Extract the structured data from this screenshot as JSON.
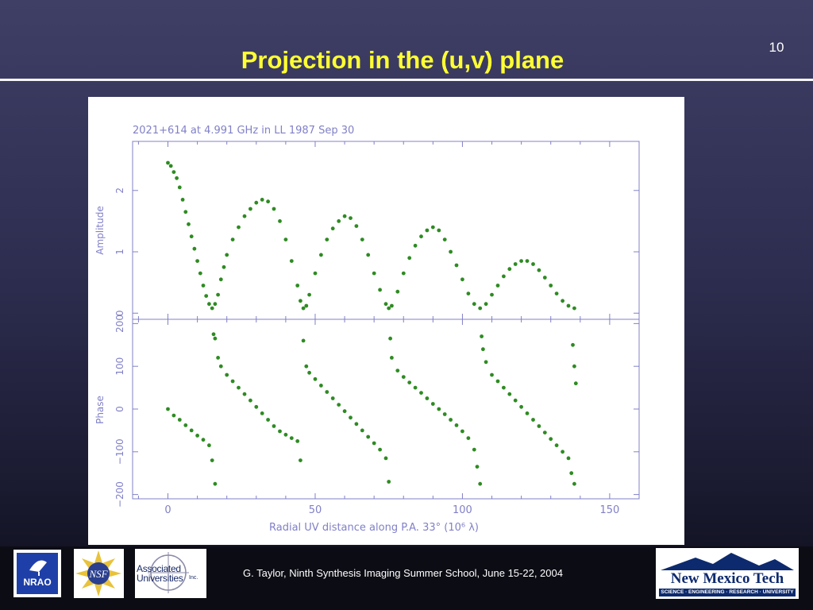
{
  "slide": {
    "number": "10",
    "title": "Projection in the (u,v) plane",
    "footer": "G. Taylor, Ninth Synthesis Imaging Summer School, June 15-22, 2004"
  },
  "logos": {
    "nrao": "NRAO",
    "nsf": "NSF",
    "au_line1": "Associated",
    "au_line2": "Universities",
    "au_line3": "Inc.",
    "nmt_name": "New Mexico Tech",
    "nmt_tagline": "SCIENCE · ENGINEERING · RESEARCH · UNIVERSITY"
  },
  "colors": {
    "data": "#2e8b22",
    "axes": "#8080c8",
    "title": "#ffff33"
  },
  "chart_data": {
    "type": "scatter",
    "title": "2021+614 at 4.991 GHz in LL  1987 Sep 30",
    "xlabel": "Radial UV distance along P.A. 33°  (10⁶ λ)",
    "xlim": [
      -12,
      160
    ],
    "x_ticks": [
      0,
      50,
      100,
      150
    ],
    "panels": [
      {
        "name": "amplitude",
        "ylabel": "Amplitude",
        "ylim": [
          -0.1,
          2.8
        ],
        "y_ticks": [
          0,
          1,
          2
        ],
        "points": [
          [
            0,
            2.45
          ],
          [
            1,
            2.4
          ],
          [
            2,
            2.3
          ],
          [
            3,
            2.2
          ],
          [
            4,
            2.05
          ],
          [
            5,
            1.85
          ],
          [
            6,
            1.65
          ],
          [
            7,
            1.45
          ],
          [
            8,
            1.25
          ],
          [
            9,
            1.05
          ],
          [
            10,
            0.85
          ],
          [
            11,
            0.65
          ],
          [
            12,
            0.45
          ],
          [
            13,
            0.28
          ],
          [
            14,
            0.15
          ],
          [
            15,
            0.08
          ],
          [
            16,
            0.15
          ],
          [
            17,
            0.3
          ],
          [
            18,
            0.55
          ],
          [
            19,
            0.75
          ],
          [
            20,
            0.95
          ],
          [
            22,
            1.2
          ],
          [
            24,
            1.4
          ],
          [
            26,
            1.58
          ],
          [
            28,
            1.7
          ],
          [
            30,
            1.8
          ],
          [
            32,
            1.85
          ],
          [
            34,
            1.82
          ],
          [
            36,
            1.7
          ],
          [
            38,
            1.5
          ],
          [
            40,
            1.2
          ],
          [
            42,
            0.85
          ],
          [
            44,
            0.45
          ],
          [
            45,
            0.2
          ],
          [
            46,
            0.08
          ],
          [
            47,
            0.12
          ],
          [
            48,
            0.3
          ],
          [
            50,
            0.65
          ],
          [
            52,
            0.95
          ],
          [
            54,
            1.2
          ],
          [
            56,
            1.38
          ],
          [
            58,
            1.5
          ],
          [
            60,
            1.58
          ],
          [
            62,
            1.55
          ],
          [
            64,
            1.42
          ],
          [
            66,
            1.2
          ],
          [
            68,
            0.95
          ],
          [
            70,
            0.65
          ],
          [
            72,
            0.38
          ],
          [
            74,
            0.15
          ],
          [
            75,
            0.08
          ],
          [
            76,
            0.12
          ],
          [
            78,
            0.35
          ],
          [
            80,
            0.65
          ],
          [
            82,
            0.9
          ],
          [
            84,
            1.1
          ],
          [
            86,
            1.25
          ],
          [
            88,
            1.35
          ],
          [
            90,
            1.4
          ],
          [
            92,
            1.35
          ],
          [
            94,
            1.2
          ],
          [
            96,
            1.0
          ],
          [
            98,
            0.78
          ],
          [
            100,
            0.55
          ],
          [
            102,
            0.32
          ],
          [
            104,
            0.15
          ],
          [
            106,
            0.08
          ],
          [
            108,
            0.15
          ],
          [
            110,
            0.3
          ],
          [
            112,
            0.45
          ],
          [
            114,
            0.6
          ],
          [
            116,
            0.72
          ],
          [
            118,
            0.8
          ],
          [
            120,
            0.85
          ],
          [
            122,
            0.85
          ],
          [
            124,
            0.8
          ],
          [
            126,
            0.7
          ],
          [
            128,
            0.58
          ],
          [
            130,
            0.45
          ],
          [
            132,
            0.32
          ],
          [
            134,
            0.2
          ],
          [
            136,
            0.12
          ],
          [
            138,
            0.08
          ]
        ]
      },
      {
        "name": "phase",
        "ylabel": "Phase",
        "ylim": [
          -210,
          210
        ],
        "y_ticks": [
          -200,
          -100,
          0,
          100,
          200
        ],
        "points": [
          [
            0,
            0
          ],
          [
            2,
            -15
          ],
          [
            4,
            -25
          ],
          [
            6,
            -38
          ],
          [
            8,
            -50
          ],
          [
            10,
            -62
          ],
          [
            12,
            -72
          ],
          [
            14,
            -85
          ],
          [
            15,
            -120
          ],
          [
            16,
            -175
          ],
          [
            15.5,
            175
          ],
          [
            16,
            165
          ],
          [
            17,
            120
          ],
          [
            18,
            100
          ],
          [
            20,
            80
          ],
          [
            22,
            65
          ],
          [
            24,
            50
          ],
          [
            26,
            35
          ],
          [
            28,
            20
          ],
          [
            30,
            5
          ],
          [
            32,
            -10
          ],
          [
            34,
            -25
          ],
          [
            36,
            -40
          ],
          [
            38,
            -52
          ],
          [
            40,
            -60
          ],
          [
            42,
            -68
          ],
          [
            44,
            -75
          ],
          [
            45,
            -120
          ],
          [
            46,
            160
          ],
          [
            47,
            100
          ],
          [
            48,
            85
          ],
          [
            50,
            70
          ],
          [
            52,
            55
          ],
          [
            54,
            40
          ],
          [
            56,
            25
          ],
          [
            58,
            10
          ],
          [
            60,
            -5
          ],
          [
            62,
            -20
          ],
          [
            64,
            -35
          ],
          [
            66,
            -50
          ],
          [
            68,
            -65
          ],
          [
            70,
            -80
          ],
          [
            72,
            -95
          ],
          [
            74,
            -115
          ],
          [
            75,
            -170
          ],
          [
            75.5,
            165
          ],
          [
            76,
            120
          ],
          [
            78,
            90
          ],
          [
            80,
            75
          ],
          [
            82,
            62
          ],
          [
            84,
            50
          ],
          [
            86,
            38
          ],
          [
            88,
            25
          ],
          [
            90,
            12
          ],
          [
            92,
            0
          ],
          [
            94,
            -12
          ],
          [
            96,
            -25
          ],
          [
            98,
            -38
          ],
          [
            100,
            -52
          ],
          [
            102,
            -68
          ],
          [
            104,
            -95
          ],
          [
            105,
            -135
          ],
          [
            106,
            -175
          ],
          [
            106.5,
            170
          ],
          [
            107,
            140
          ],
          [
            108,
            110
          ],
          [
            110,
            80
          ],
          [
            112,
            65
          ],
          [
            114,
            50
          ],
          [
            116,
            35
          ],
          [
            118,
            20
          ],
          [
            120,
            5
          ],
          [
            122,
            -10
          ],
          [
            124,
            -25
          ],
          [
            126,
            -40
          ],
          [
            128,
            -55
          ],
          [
            130,
            -70
          ],
          [
            132,
            -85
          ],
          [
            134,
            -100
          ],
          [
            136,
            -115
          ],
          [
            137,
            -150
          ],
          [
            138,
            -175
          ],
          [
            137.5,
            150
          ],
          [
            138,
            100
          ],
          [
            138.5,
            60
          ]
        ]
      }
    ]
  }
}
